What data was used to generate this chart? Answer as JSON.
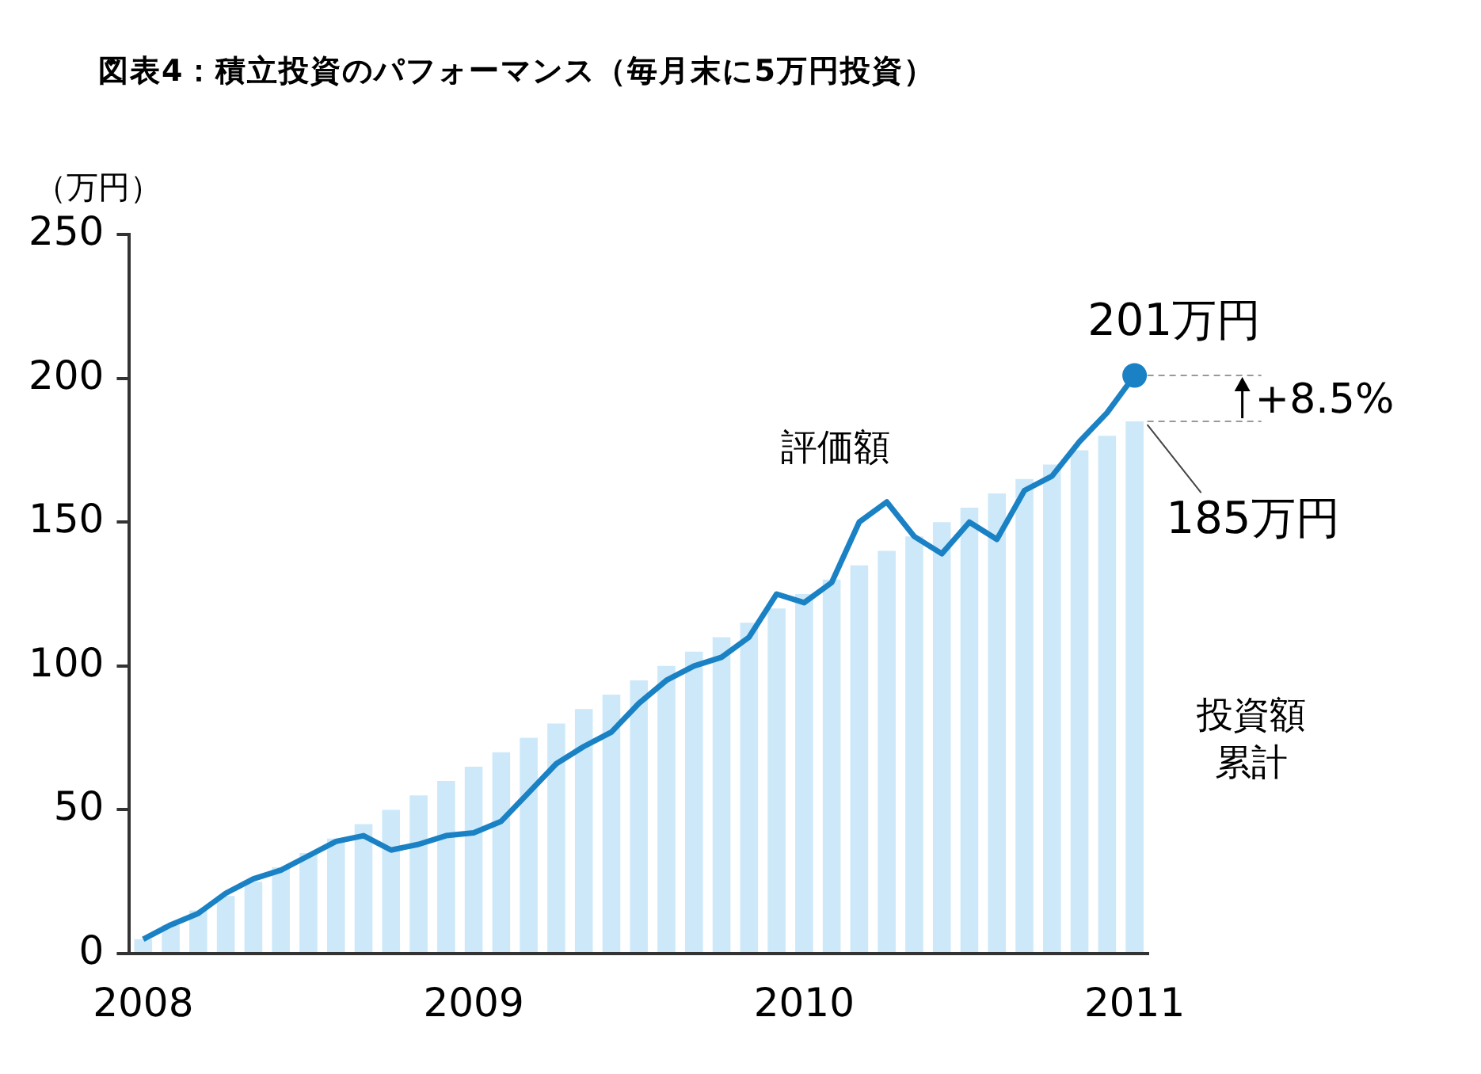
{
  "chart_data": {
    "type": "bar",
    "title": "図表4：積立投資のパフォーマンス（毎月末に5万円投資）",
    "ylabel": "（万円）",
    "categories": [
      "2008",
      null,
      null,
      null,
      null,
      null,
      null,
      null,
      null,
      null,
      null,
      null,
      "2009",
      null,
      null,
      null,
      null,
      null,
      null,
      null,
      null,
      null,
      null,
      null,
      "2010",
      null,
      null,
      null,
      null,
      null,
      null,
      null,
      null,
      null,
      null,
      null,
      "2011"
    ],
    "series": [
      {
        "name": "投資額累計",
        "color": "#cde9f9",
        "values": [
          5,
          10,
          15,
          20,
          25,
          30,
          35,
          40,
          45,
          50,
          55,
          60,
          65,
          70,
          75,
          80,
          85,
          90,
          95,
          100,
          105,
          110,
          115,
          120,
          125,
          130,
          135,
          140,
          145,
          150,
          155,
          160,
          165,
          170,
          175,
          180,
          185
        ]
      },
      {
        "name": "評価額",
        "type": "line",
        "color": "#1a82c4",
        "values": [
          5,
          10,
          14,
          21,
          26,
          29,
          34,
          39,
          41,
          36,
          38,
          41,
          42,
          46,
          56,
          66,
          72,
          77,
          87,
          95,
          100,
          103,
          110,
          125,
          122,
          129,
          150,
          157,
          145,
          139,
          150,
          144,
          161,
          166,
          178,
          188,
          201
        ]
      }
    ],
    "ylim": [
      0,
      250
    ],
    "yticks": [
      0,
      50,
      100,
      150,
      200,
      250
    ],
    "grid": false,
    "legend": false,
    "annotations": [
      {
        "text": "201万円",
        "x": "2011",
        "y": 201
      },
      {
        "text": "185万円",
        "x": "2011",
        "y": 185
      },
      "+8.5%"
    ]
  }
}
